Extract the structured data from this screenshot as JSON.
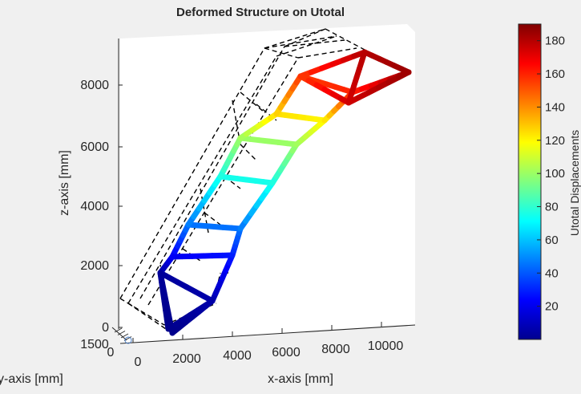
{
  "chart_data": {
    "type": "3d-line",
    "title": "Deformed Structure on Utotal",
    "xlabel": "x-axis [mm]",
    "ylabel": "y-axis [mm]",
    "zlabel": "z-axis [mm]",
    "x_ticks": [
      "0",
      "2000",
      "4000",
      "6000",
      "8000",
      "10000"
    ],
    "y_ticks": [
      "0",
      "1500"
    ],
    "z_ticks": [
      "0",
      "2000",
      "4000",
      "6000",
      "8000"
    ],
    "colorbar": {
      "label": "Utotal Displacements",
      "ticks": [
        "20",
        "40",
        "60",
        "80",
        "100",
        "120",
        "140",
        "160",
        "180"
      ],
      "range": [
        0,
        190
      ],
      "colormap": "jet"
    },
    "series": [
      {
        "style": "dashed",
        "color": "#000000"
      },
      {
        "style": "solid-thick",
        "colormap": "jet"
      }
    ],
    "grid": false
  }
}
